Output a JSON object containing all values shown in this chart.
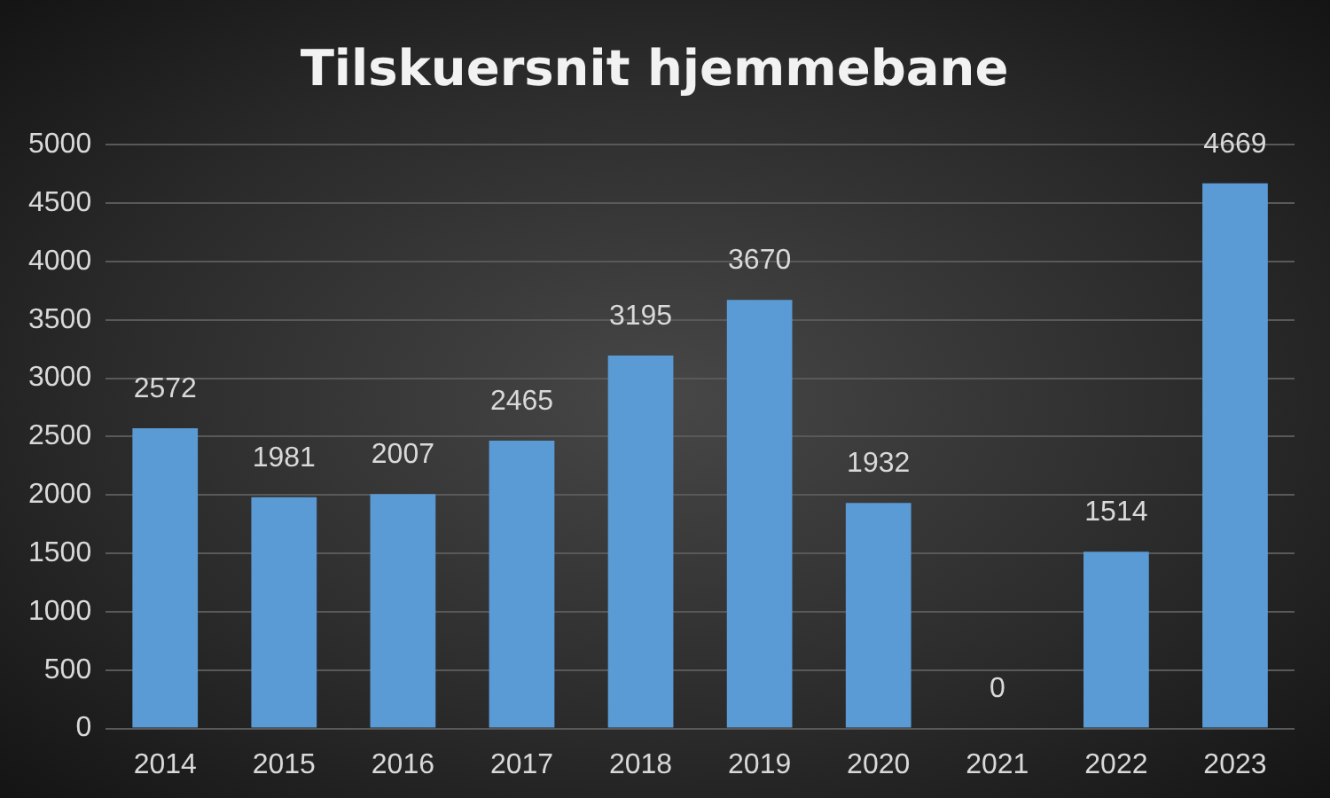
{
  "chart_data": {
    "type": "bar",
    "title": "Tilskuersnit hjemmebane",
    "categories": [
      "2014",
      "2015",
      "2016",
      "2017",
      "2018",
      "2019",
      "2020",
      "2021",
      "2022",
      "2023"
    ],
    "values": [
      2572,
      1981,
      2007,
      2465,
      3195,
      3670,
      1932,
      0,
      1514,
      4669
    ],
    "color": "#5b9bd5",
    "ylim": [
      0,
      5000
    ],
    "yticks": [
      0,
      500,
      1000,
      1500,
      2000,
      2500,
      3000,
      3500,
      4000,
      4500,
      5000
    ],
    "grid": "y",
    "data_labels": true
  }
}
